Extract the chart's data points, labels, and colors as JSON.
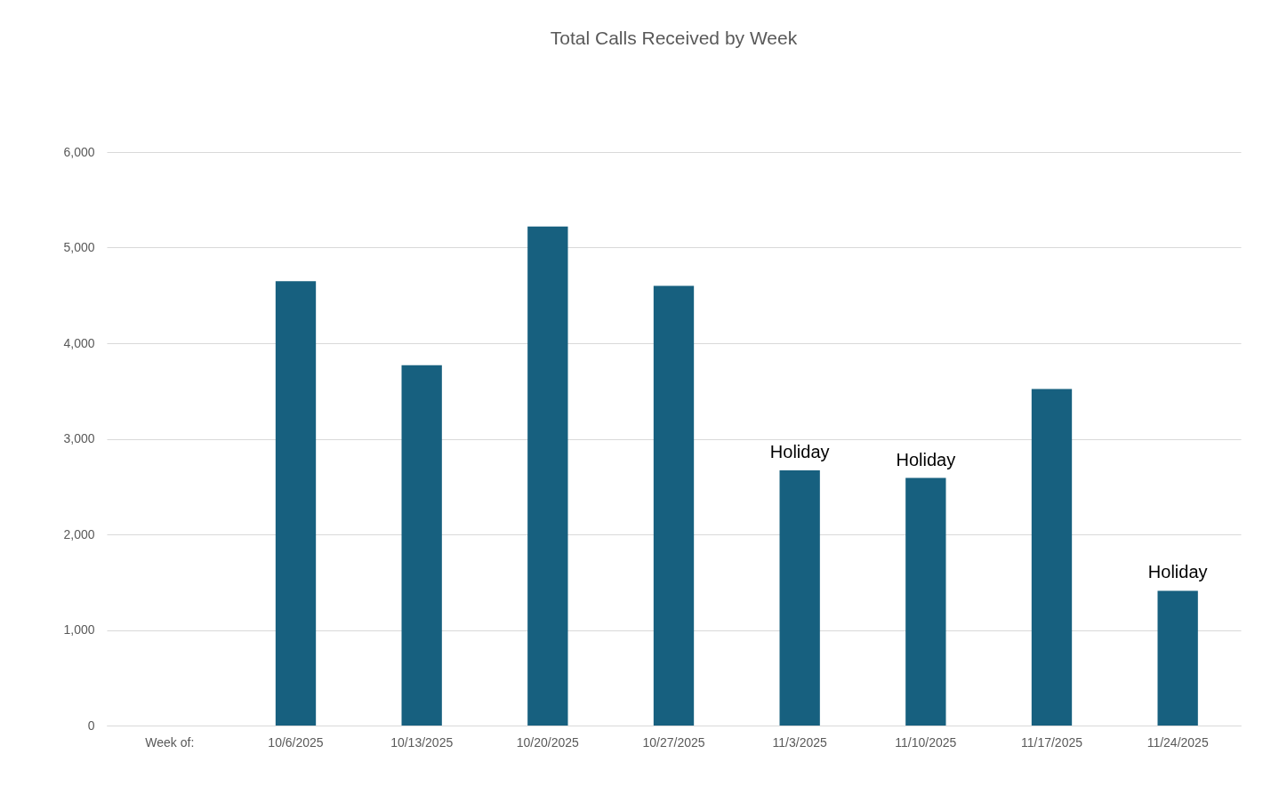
{
  "chart_data": {
    "type": "bar",
    "title": "Total Calls Received by Week",
    "xlabel": "Week of:",
    "categories": [
      null,
      "10/6/2025",
      "10/13/2025",
      "10/20/2025",
      "10/27/2025",
      "11/3/2025",
      "11/10/2025",
      "11/17/2025",
      "11/24/2025"
    ],
    "values": [
      null,
      4650,
      3770,
      5220,
      4600,
      2670,
      2590,
      3520,
      1410
    ],
    "color": "#17607f",
    "ylim": [
      0,
      6000
    ],
    "yticks": [
      0,
      {
        "value": 1000,
        "label": "1,000"
      },
      {
        "value": 2000,
        "label": "2,000"
      },
      {
        "value": 3000,
        "label": "3,000"
      },
      {
        "value": 4000,
        "label": "4,000"
      },
      {
        "value": 5000,
        "label": "5,000"
      },
      {
        "value": 6000,
        "label": "6,000"
      }
    ],
    "grid": "y",
    "annotations": [
      {
        "text": "Holiday",
        "x": "11/3/2025",
        "y": 2670
      },
      {
        "text": "Holiday",
        "x": "11/10/2025",
        "y": 2590
      },
      {
        "text": "Holiday",
        "x": "11/24/2025",
        "y": 1410
      }
    ]
  }
}
